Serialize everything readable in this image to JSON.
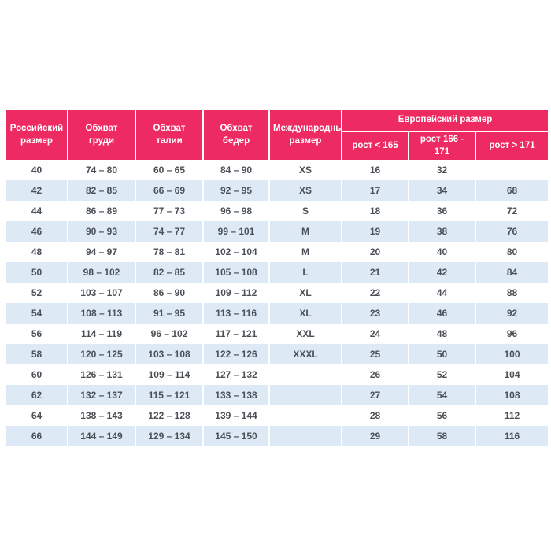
{
  "colors": {
    "header_bg": "#ee2a62",
    "header_text": "#ffffff",
    "row_alt_bg": "#dde9f5",
    "body_text": "#4b5056",
    "page_bg": "#ffffff"
  },
  "chart_data": {
    "type": "table",
    "title": "",
    "columns": [
      "Российский размер",
      "Обхват груди",
      "Обхват талии",
      "Обхват бедер",
      "Международный размер"
    ],
    "group_header": {
      "label": "Европейский размер",
      "columns": [
        "рост < 165",
        "рост 166 - 171",
        "рост > 171"
      ]
    },
    "rows": [
      [
        "40",
        "74 – 80",
        "60 – 65",
        "84 – 90",
        "XS",
        "16",
        "32",
        ""
      ],
      [
        "42",
        "82 – 85",
        "66 – 69",
        "92 – 95",
        "XS",
        "17",
        "34",
        "68"
      ],
      [
        "44",
        "86 – 89",
        "77 – 73",
        "96 – 98",
        "S",
        "18",
        "36",
        "72"
      ],
      [
        "46",
        "90 – 93",
        "74 – 77",
        "99 – 101",
        "M",
        "19",
        "38",
        "76"
      ],
      [
        "48",
        "94 – 97",
        "78 – 81",
        "102 – 104",
        "M",
        "20",
        "40",
        "80"
      ],
      [
        "50",
        "98 – 102",
        "82 – 85",
        "105 – 108",
        "L",
        "21",
        "42",
        "84"
      ],
      [
        "52",
        "103 – 107",
        "86 – 90",
        "109 – 112",
        "XL",
        "22",
        "44",
        "88"
      ],
      [
        "54",
        "108 – 113",
        "91 – 95",
        "113 – 116",
        "XL",
        "23",
        "46",
        "92"
      ],
      [
        "56",
        "114 – 119",
        "96 – 102",
        "117 – 121",
        "XXL",
        "24",
        "48",
        "96"
      ],
      [
        "58",
        "120 – 125",
        "103 – 108",
        "122 – 126",
        "XXXL",
        "25",
        "50",
        "100"
      ],
      [
        "60",
        "126 – 131",
        "109 – 114",
        "127 – 132",
        "",
        "26",
        "52",
        "104"
      ],
      [
        "62",
        "132 – 137",
        "115 – 121",
        "133 – 138",
        "",
        "27",
        "54",
        "108"
      ],
      [
        "64",
        "138 – 143",
        "122 – 128",
        "139 – 144",
        "",
        "28",
        "56",
        "112"
      ],
      [
        "66",
        "144 – 149",
        "129 – 134",
        "145 – 150",
        "",
        "29",
        "58",
        "116"
      ]
    ]
  }
}
